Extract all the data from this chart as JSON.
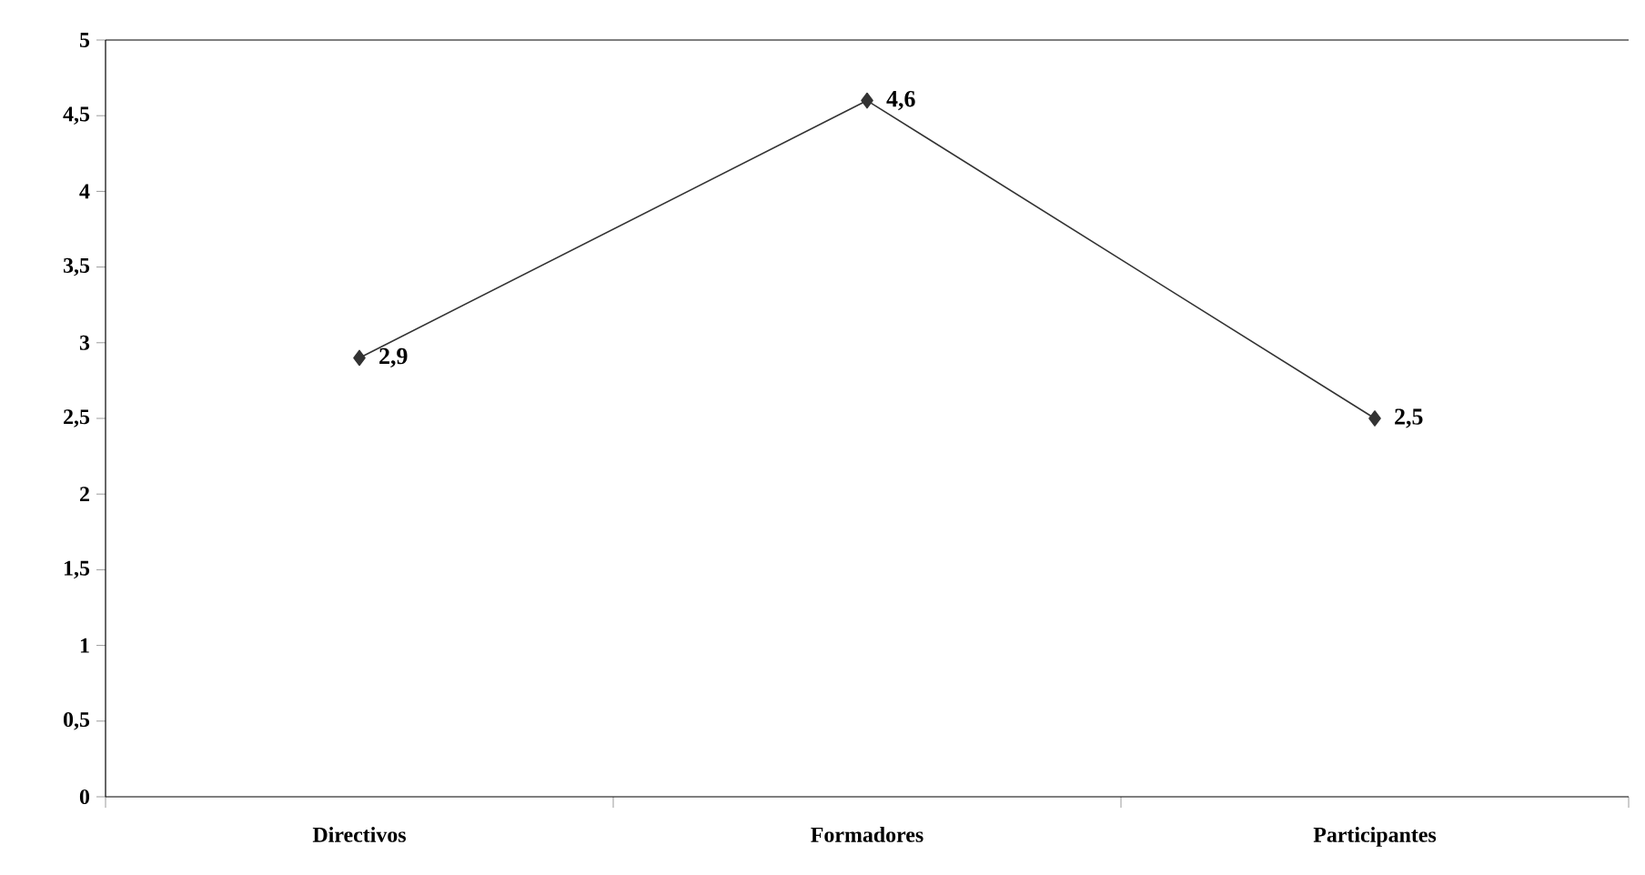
{
  "chart_data": {
    "type": "line",
    "categories": [
      "Directivos",
      "Formadores",
      "Participantes"
    ],
    "series": [
      {
        "color": "#333333",
        "values": [
          2.9,
          4.6,
          2.5
        ],
        "value_labels": [
          "2,9",
          "4,6",
          "2,5"
        ]
      }
    ],
    "ylim": [
      0,
      5
    ],
    "yticks": [
      0,
      {
        "value": 0.5,
        "label": "0,5"
      },
      1,
      {
        "value": 1.5,
        "label": "1,5"
      },
      2,
      {
        "value": 2.5,
        "label": "2,5"
      },
      3,
      {
        "value": 3.5,
        "label": "3,5"
      },
      4,
      {
        "value": 4.5,
        "label": "4,5"
      },
      5
    ],
    "marker": "diamond",
    "line_style": "solid",
    "grid": false,
    "legend": false
  }
}
